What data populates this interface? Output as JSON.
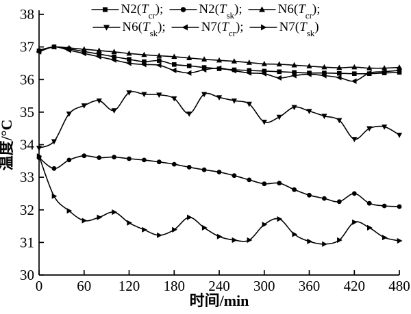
{
  "figure": {
    "background_color": "#ffffff",
    "line_color": "#000000",
    "text_color": "#000000"
  },
  "chart_data": {
    "type": "line",
    "title": "",
    "xlabel": "时间/min",
    "ylabel": "温度/°C",
    "xlim": [
      0,
      480
    ],
    "ylim": [
      30,
      38
    ],
    "xticks": [
      0,
      60,
      120,
      180,
      240,
      300,
      360,
      420,
      480
    ],
    "yticks": [
      30,
      31,
      32,
      33,
      34,
      35,
      36,
      37,
      38
    ],
    "grid": false,
    "legend_position": "top-center",
    "x": [
      0,
      20,
      40,
      60,
      80,
      100,
      120,
      140,
      160,
      180,
      200,
      220,
      240,
      260,
      280,
      300,
      320,
      340,
      360,
      380,
      400,
      420,
      440,
      460,
      480
    ],
    "series": [
      {
        "name": "N2(Tcr)",
        "marker": "square",
        "label_prefix": "N2(",
        "label_t": "T",
        "label_sub": "cr",
        "label_suffix": ");",
        "values": [
          36.88,
          37.0,
          36.94,
          36.86,
          36.78,
          36.7,
          36.62,
          36.55,
          36.58,
          36.46,
          36.42,
          36.37,
          36.33,
          36.3,
          36.28,
          36.26,
          36.24,
          36.22,
          36.2,
          36.2,
          36.19,
          36.18,
          36.18,
          36.2,
          36.22
        ]
      },
      {
        "name": "N2(Tsk)",
        "marker": "circle",
        "label_prefix": "N2(",
        "label_t": "T",
        "label_sub": "sk",
        "label_suffix": ");",
        "values": [
          33.6,
          33.27,
          33.53,
          33.66,
          33.6,
          33.62,
          33.57,
          33.53,
          33.47,
          33.4,
          33.31,
          33.23,
          33.16,
          33.05,
          32.92,
          32.8,
          32.82,
          32.62,
          32.45,
          32.35,
          32.25,
          32.5,
          32.2,
          32.12,
          32.1
        ]
      },
      {
        "name": "N6(Tcr)",
        "marker": "triangle-up",
        "label_prefix": "N6(",
        "label_t": "T",
        "label_sub": "cr",
        "label_suffix": ");",
        "values": [
          36.9,
          37.0,
          36.97,
          36.93,
          36.89,
          36.85,
          36.8,
          36.76,
          36.73,
          36.7,
          36.66,
          36.62,
          36.59,
          36.56,
          36.52,
          36.48,
          36.47,
          36.44,
          36.41,
          36.38,
          36.36,
          36.38,
          36.35,
          36.35,
          36.37
        ]
      },
      {
        "name": "N6(Tsk)",
        "marker": "triangle-down",
        "label_prefix": "N6(",
        "label_t": "T",
        "label_sub": "sk",
        "label_suffix": ");",
        "values": [
          33.9,
          34.1,
          34.95,
          35.2,
          35.35,
          35.05,
          35.6,
          35.55,
          35.53,
          35.42,
          34.95,
          35.55,
          35.45,
          35.35,
          35.25,
          34.7,
          34.85,
          35.15,
          35.03,
          34.88,
          34.75,
          34.17,
          34.5,
          34.55,
          34.3
        ]
      },
      {
        "name": "N7(Tcr)",
        "marker": "triangle-left",
        "label_prefix": "N7(",
        "label_t": "T",
        "label_sub": "cr",
        "label_suffix": ");",
        "values": [
          36.85,
          37.0,
          36.9,
          36.8,
          36.7,
          36.6,
          36.5,
          36.46,
          36.44,
          36.28,
          36.2,
          36.3,
          36.35,
          36.27,
          36.2,
          36.18,
          36.05,
          36.12,
          36.16,
          36.12,
          36.06,
          35.95,
          36.2,
          36.24,
          36.28
        ]
      },
      {
        "name": "N7(Tsk)",
        "marker": "triangle-right",
        "label_prefix": "N7(",
        "label_t": "T",
        "label_sub": "sk",
        "label_suffix": ")",
        "values": [
          33.65,
          32.42,
          31.97,
          31.67,
          31.77,
          31.93,
          31.6,
          31.39,
          31.22,
          31.39,
          31.77,
          31.45,
          31.18,
          31.07,
          31.07,
          31.55,
          31.72,
          31.25,
          31.03,
          30.95,
          31.07,
          31.62,
          31.45,
          31.15,
          31.05
        ]
      }
    ]
  }
}
